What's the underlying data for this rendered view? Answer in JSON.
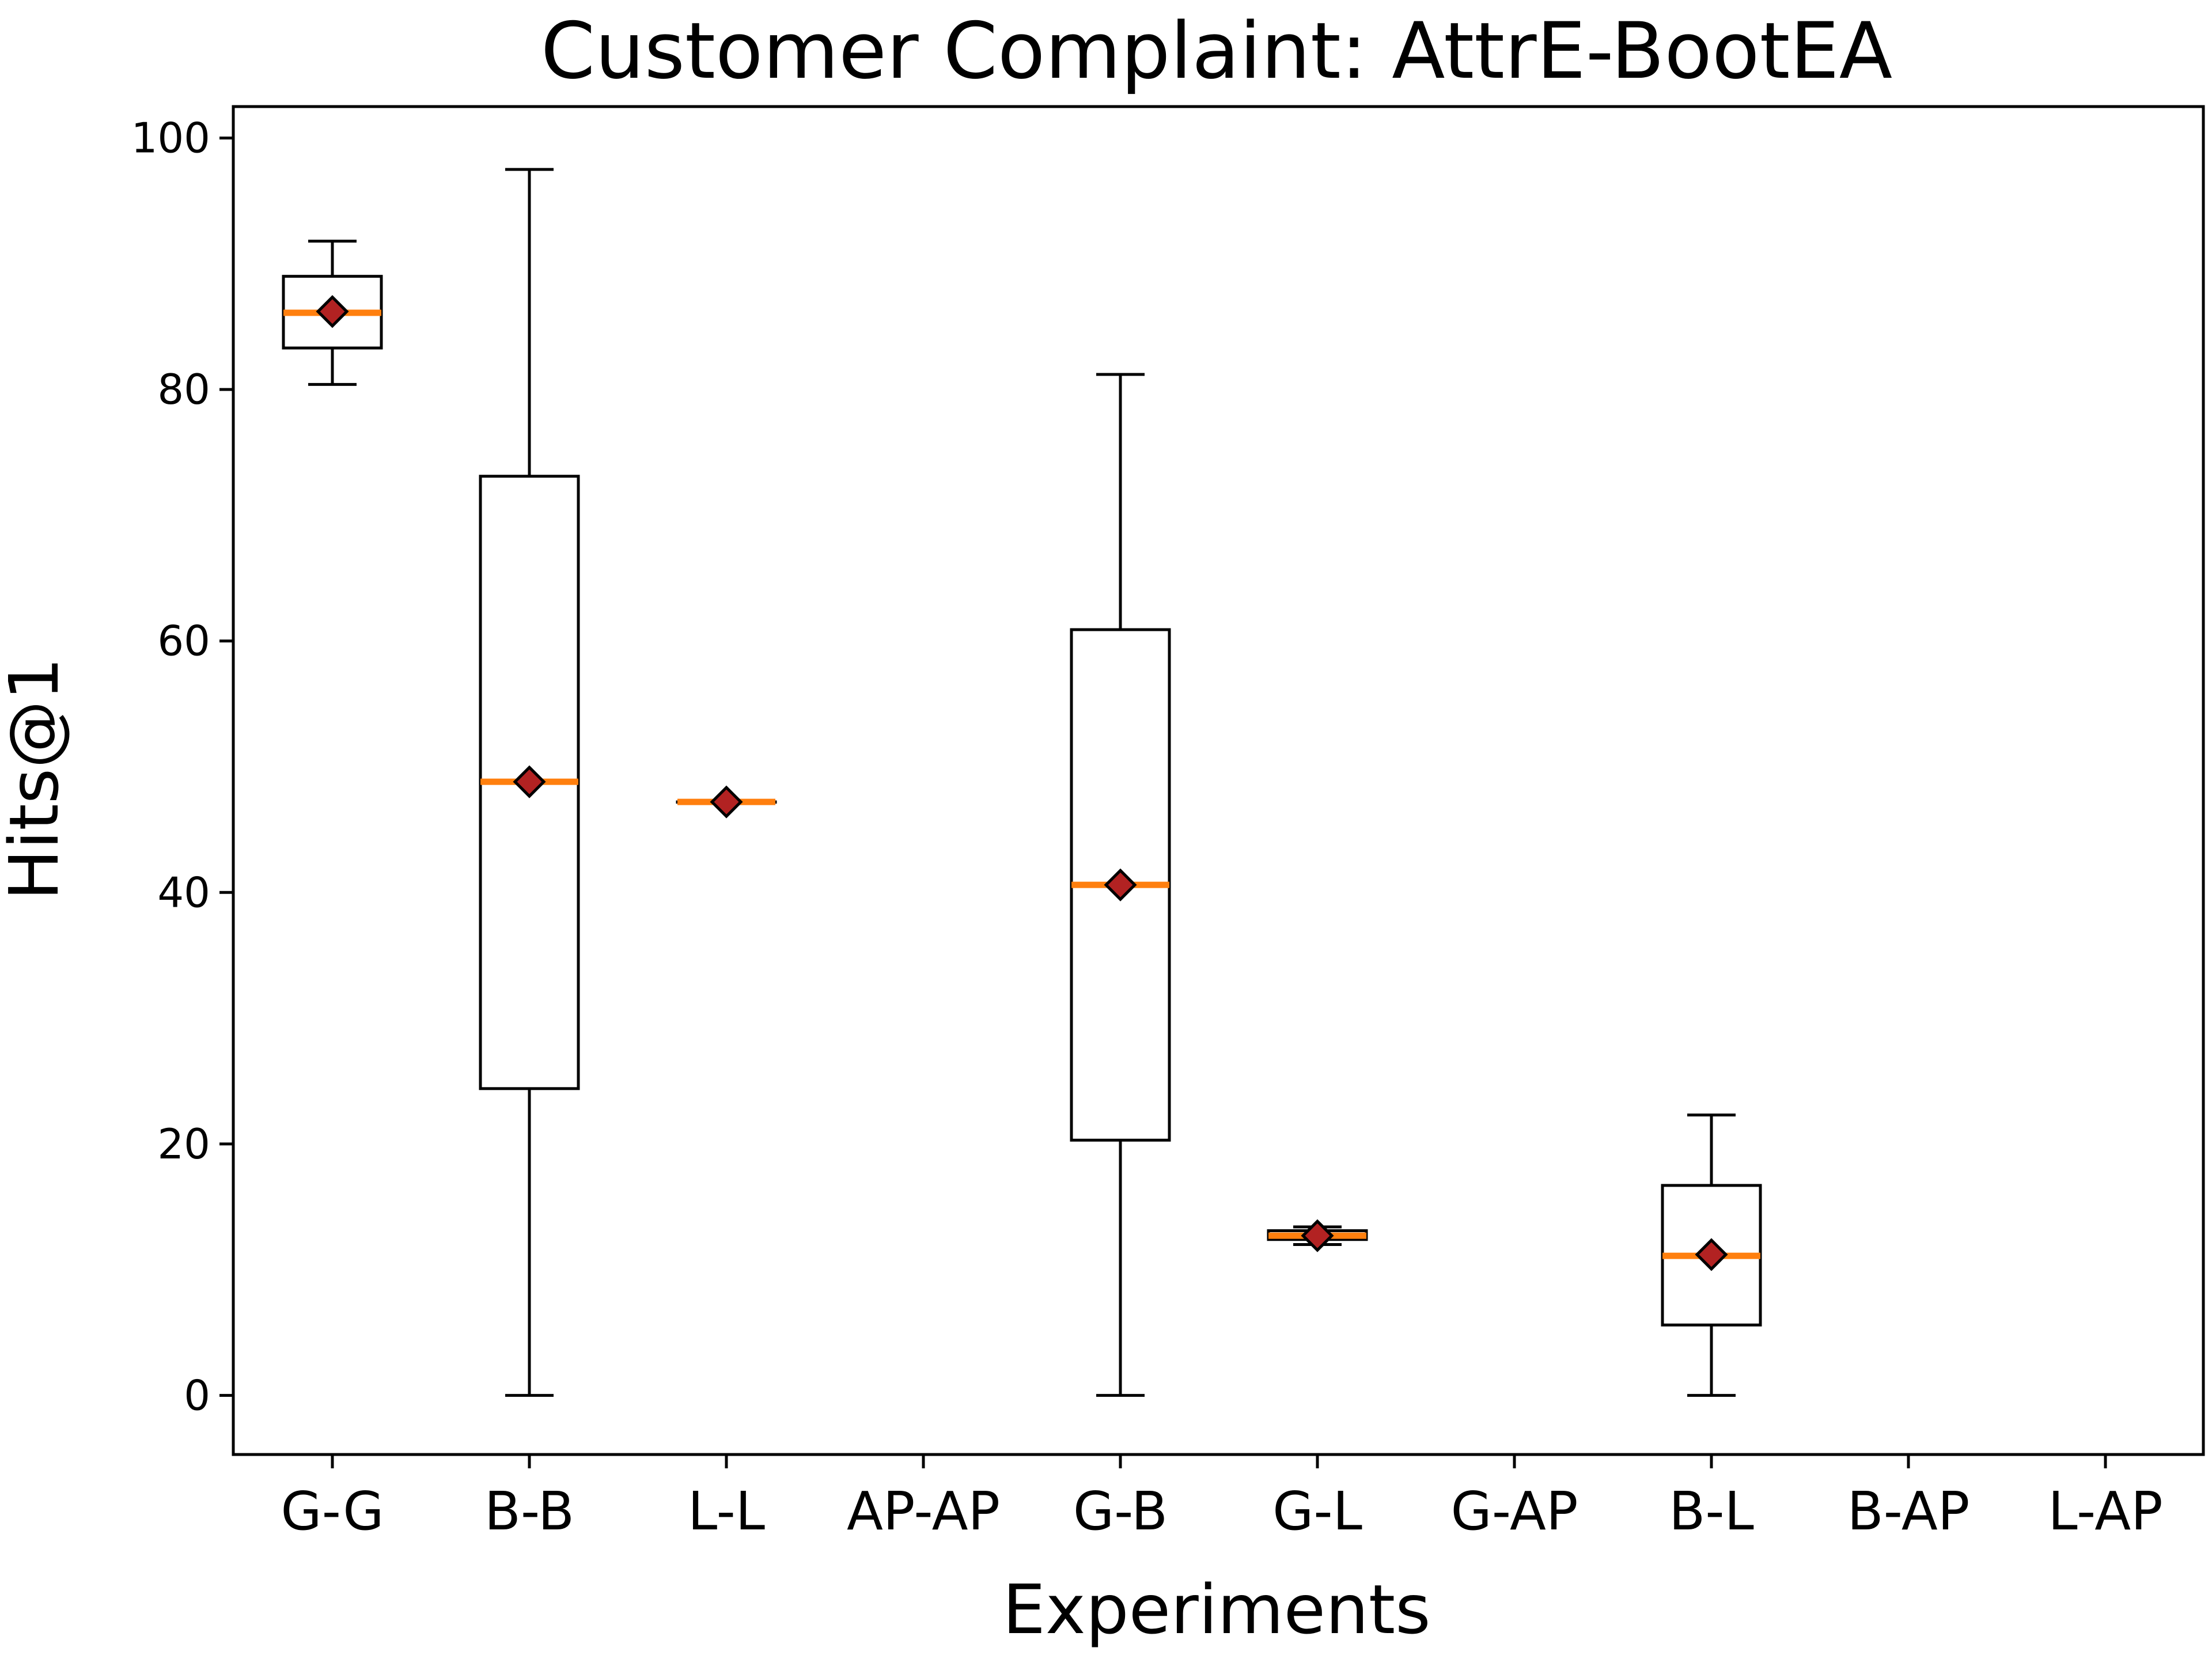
{
  "chart_data": {
    "type": "box",
    "title": "Customer Complaint: AttrE-BootEA",
    "xlabel": "Experiments",
    "ylabel": "Hits@1",
    "ylim": [
      -4.7,
      102.5
    ],
    "yticks": [
      0,
      20,
      40,
      60,
      80,
      100
    ],
    "grid": false,
    "categories": [
      "G-G",
      "B-B",
      "L-L",
      "AP-AP",
      "G-B",
      "G-L",
      "G-AP",
      "B-L",
      "B-AP",
      "L-AP"
    ],
    "boxes": [
      {
        "category": "G-G",
        "whisker_low": 80.4,
        "q1": 83.3,
        "median": 86.1,
        "q3": 89.0,
        "whisker_high": 91.8,
        "mean": 86.2
      },
      {
        "category": "B-B",
        "whisker_low": 0.0,
        "q1": 24.4,
        "median": 48.8,
        "q3": 73.1,
        "whisker_high": 97.5,
        "mean": 48.8
      },
      {
        "category": "L-L",
        "whisker_low": 47.2,
        "q1": 47.2,
        "median": 47.2,
        "q3": 47.2,
        "whisker_high": 47.2,
        "mean": 47.2
      },
      {
        "category": "AP-AP",
        "empty": true
      },
      {
        "category": "G-B",
        "whisker_low": 0.0,
        "q1": 20.3,
        "median": 40.6,
        "q3": 60.9,
        "whisker_high": 81.2,
        "mean": 40.6
      },
      {
        "category": "G-L",
        "whisker_low": 12.0,
        "q1": 12.4,
        "median": 12.7,
        "q3": 13.1,
        "whisker_high": 13.4,
        "mean": 12.7
      },
      {
        "category": "G-AP",
        "empty": true
      },
      {
        "category": "B-L",
        "whisker_low": 0.0,
        "q1": 5.6,
        "median": 11.1,
        "q3": 16.7,
        "whisker_high": 22.3,
        "mean": 11.2
      },
      {
        "category": "B-AP",
        "empty": true
      },
      {
        "category": "L-AP",
        "empty": true
      }
    ],
    "colors": {
      "box_edge": "#000000",
      "median_line": "#ff7f0e",
      "mean_marker_fill": "#b22222",
      "mean_marker_edge": "#000000"
    }
  }
}
